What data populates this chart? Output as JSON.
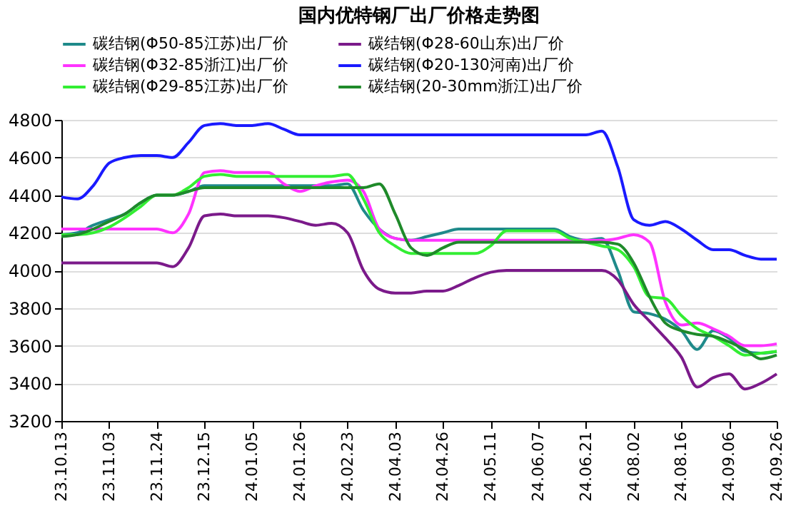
{
  "chart_data": {
    "type": "line",
    "title": "国内优特钢厂出厂价格走势图",
    "categories": [
      "23.10.13",
      null,
      null,
      "23.11.03",
      null,
      null,
      "23.11.24",
      null,
      null,
      "23.12.15",
      null,
      null,
      "24.01.05",
      null,
      null,
      "24.01.26",
      null,
      null,
      "24.02.23",
      null,
      null,
      "24.04.03",
      null,
      null,
      "24.04.26",
      null,
      null,
      "24.05.11",
      null,
      null,
      "24.06.07",
      null,
      null,
      "24.06.21",
      null,
      null,
      "24.08.02",
      null,
      null,
      "24.08.16",
      null,
      null,
      "24.09.06",
      null,
      null,
      "24.09.26"
    ],
    "series": [
      {
        "name": "碳结钢(Φ50-85江苏)出厂价",
        "color": "#1f8a8a",
        "values": [
          4190,
          4200,
          4240,
          4270,
          4300,
          4360,
          4400,
          4400,
          4420,
          4450,
          4450,
          4450,
          4450,
          4450,
          4450,
          4450,
          4450,
          4450,
          4460,
          4320,
          4220,
          4170,
          4160,
          4180,
          4200,
          4220,
          4220,
          4220,
          4220,
          4220,
          4220,
          4220,
          4180,
          4160,
          4170,
          4000,
          3780,
          3770,
          3740,
          3680,
          3580,
          3680,
          3640,
          3570,
          3560,
          3570
        ]
      },
      {
        "name": "碳结钢(Φ28-60山东)出厂价",
        "color": "#7b1a8a",
        "values": [
          4040,
          4040,
          4040,
          4040,
          4040,
          4040,
          4040,
          4020,
          4120,
          4290,
          4300,
          4290,
          4290,
          4290,
          4280,
          4260,
          4240,
          4250,
          4200,
          4000,
          3900,
          3880,
          3880,
          3890,
          3890,
          3920,
          3960,
          3990,
          4000,
          4000,
          4000,
          4000,
          4000,
          4000,
          4000,
          3950,
          3820,
          3730,
          3640,
          3540,
          3380,
          3430,
          3450,
          3370,
          3400,
          3450
        ]
      },
      {
        "name": "碳结钢(Φ32-85浙江)出厂价",
        "color": "#ff33ff",
        "values": [
          4220,
          4220,
          4220,
          4220,
          4220,
          4220,
          4220,
          4200,
          4300,
          4520,
          4530,
          4520,
          4520,
          4520,
          4460,
          4420,
          4450,
          4470,
          4480,
          4420,
          4220,
          4170,
          4160,
          4160,
          4160,
          4160,
          4160,
          4160,
          4160,
          4160,
          4160,
          4160,
          4160,
          4160,
          4160,
          4170,
          4190,
          4150,
          3830,
          3710,
          3720,
          3690,
          3650,
          3600,
          3600,
          3610
        ]
      },
      {
        "name": "碳结钢(Φ20-130河南)出厂价",
        "color": "#1a1aff",
        "values": [
          4390,
          4380,
          4450,
          4570,
          4600,
          4610,
          4610,
          4600,
          4680,
          4770,
          4780,
          4770,
          4770,
          4780,
          4750,
          4720,
          4720,
          4720,
          4720,
          4720,
          4720,
          4720,
          4720,
          4720,
          4720,
          4720,
          4720,
          4720,
          4720,
          4720,
          4720,
          4720,
          4720,
          4720,
          4740,
          4550,
          4270,
          4240,
          4260,
          4220,
          4160,
          4110,
          4110,
          4080,
          4060,
          4060
        ]
      },
      {
        "name": "碳结钢(Φ29-85江苏)出厂价",
        "color": "#33ee33",
        "values": [
          4190,
          4190,
          4200,
          4230,
          4280,
          4340,
          4400,
          4400,
          4440,
          4500,
          4510,
          4500,
          4500,
          4500,
          4500,
          4500,
          4500,
          4500,
          4510,
          4380,
          4200,
          4130,
          4090,
          4090,
          4090,
          4090,
          4090,
          4130,
          4210,
          4210,
          4210,
          4210,
          4170,
          4150,
          4130,
          4110,
          4020,
          3860,
          3850,
          3760,
          3690,
          3650,
          3600,
          3550,
          3560,
          3570
        ]
      },
      {
        "name": "碳结钢(20-30mm浙江)出厂价",
        "color": "#1f8a2a",
        "values": [
          4180,
          4190,
          4220,
          4260,
          4300,
          4360,
          4400,
          4400,
          4420,
          4440,
          4440,
          4440,
          4440,
          4440,
          4440,
          4440,
          4440,
          4440,
          4440,
          4440,
          4460,
          4300,
          4120,
          4080,
          4120,
          4150,
          4150,
          4150,
          4150,
          4150,
          4150,
          4150,
          4150,
          4150,
          4150,
          4140,
          4040,
          3860,
          3720,
          3680,
          3660,
          3650,
          3620,
          3580,
          3530,
          3550
        ]
      }
    ],
    "ylim": [
      3200,
      4800
    ],
    "yticks": [
      3200,
      3400,
      3600,
      3800,
      4000,
      4200,
      4400,
      4600,
      4800
    ],
    "grid": "y",
    "legend": "top",
    "marker": "none",
    "line_style": "solid"
  }
}
